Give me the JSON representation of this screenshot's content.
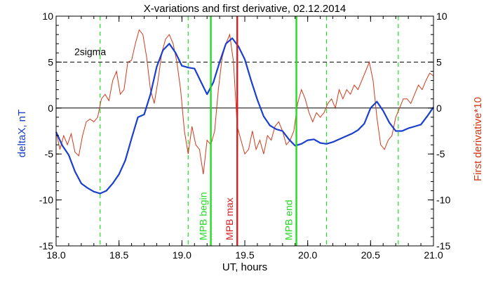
{
  "chart_data": {
    "type": "line",
    "title": "X-variations and first derivative, 02.12.2014",
    "xlabel": "UT, hours",
    "ylabel_left": "deltaX, nT",
    "ylabel_right": "First derivative*10",
    "xlim": [
      18.0,
      21.0
    ],
    "ylim": [
      -15,
      10
    ],
    "x_ticks": [
      "18.0",
      "18.5",
      "19.0",
      "19.5",
      "20.0",
      "20.5",
      "21.0"
    ],
    "y_ticks": [
      "-15",
      "-10",
      "-5",
      "0",
      "5",
      "10"
    ],
    "threshold": {
      "label": "2sigma",
      "value": 5
    },
    "zero_line": 0,
    "colors": {
      "deltaX": "#1a3fcc",
      "derivative": "#d03a1a",
      "green": "#22dd22",
      "red_marker": "#d42020",
      "threshold": "#000000"
    },
    "series": [
      {
        "name": "deltaX, nT",
        "color": "#1a3fcc",
        "x": [
          18.0,
          18.05,
          18.1,
          18.15,
          18.2,
          18.25,
          18.3,
          18.35,
          18.4,
          18.45,
          18.5,
          18.55,
          18.6,
          18.65,
          18.7,
          18.75,
          18.8,
          18.85,
          18.9,
          18.95,
          19.0,
          19.05,
          19.1,
          19.15,
          19.2,
          19.25,
          19.3,
          19.35,
          19.4,
          19.45,
          19.5,
          19.55,
          19.6,
          19.65,
          19.7,
          19.75,
          19.8,
          19.85,
          19.9,
          19.95,
          20.0,
          20.05,
          20.1,
          20.15,
          20.2,
          20.25,
          20.3,
          20.35,
          20.4,
          20.45,
          20.5,
          20.55,
          20.6,
          20.65,
          20.7,
          20.75,
          20.8,
          20.85,
          20.9,
          20.95,
          21.0
        ],
        "values": [
          -2.6,
          -4.1,
          -5.1,
          -6.9,
          -8.2,
          -8.7,
          -9.1,
          -9.3,
          -9.0,
          -8.2,
          -7.2,
          -5.7,
          -3.3,
          -1.0,
          -0.7,
          1.5,
          4.5,
          6.3,
          7.0,
          6.0,
          4.6,
          4.4,
          4.3,
          2.9,
          1.5,
          2.8,
          5.0,
          7.0,
          7.6,
          6.7,
          5.3,
          3.0,
          0.9,
          -0.9,
          -1.9,
          -2.3,
          -2.5,
          -3.4,
          -4.1,
          -3.9,
          -3.5,
          -3.4,
          -3.8,
          -3.9,
          -3.7,
          -3.4,
          -3.1,
          -2.8,
          -2.4,
          -1.7,
          0.0,
          0.7,
          -0.3,
          -1.6,
          -2.5,
          -2.5,
          -2.2,
          -2.0,
          -1.8,
          -0.9,
          0.1
        ]
      },
      {
        "name": "First derivative*10",
        "color": "#d03a1a",
        "x": [
          18.0,
          18.03,
          18.06,
          18.09,
          18.12,
          18.15,
          18.18,
          18.21,
          18.24,
          18.27,
          18.3,
          18.33,
          18.36,
          18.39,
          18.42,
          18.45,
          18.48,
          18.51,
          18.54,
          18.57,
          18.6,
          18.63,
          18.66,
          18.69,
          18.72,
          18.75,
          18.78,
          18.81,
          18.84,
          18.87,
          18.9,
          18.93,
          18.96,
          18.99,
          19.02,
          19.05,
          19.08,
          19.11,
          19.14,
          19.17,
          19.2,
          19.23,
          19.26,
          19.29,
          19.32,
          19.35,
          19.38,
          19.41,
          19.44,
          19.47,
          19.5,
          19.53,
          19.56,
          19.59,
          19.62,
          19.65,
          19.68,
          19.71,
          19.74,
          19.77,
          19.8,
          19.83,
          19.86,
          19.89,
          19.92,
          19.95,
          19.98,
          20.01,
          20.04,
          20.07,
          20.1,
          20.13,
          20.16,
          20.19,
          20.22,
          20.25,
          20.28,
          20.31,
          20.34,
          20.37,
          20.4,
          20.43,
          20.46,
          20.49,
          20.52,
          20.55,
          20.58,
          20.61,
          20.64,
          20.67,
          20.7,
          20.73,
          20.76,
          20.79,
          20.82,
          20.85,
          20.88,
          20.91,
          20.94,
          20.97,
          21.0
        ],
        "values": [
          -2.5,
          -4.5,
          -3.0,
          -4.0,
          -2.8,
          -4.8,
          -5.2,
          -3.0,
          -1.5,
          -1.2,
          -1.5,
          -1.0,
          1.0,
          1.5,
          0.8,
          3.0,
          4.0,
          1.5,
          2.0,
          5.0,
          5.2,
          7.0,
          8.5,
          8.0,
          5.5,
          2.0,
          0.5,
          3.0,
          6.0,
          7.5,
          8.0,
          7.0,
          5.0,
          2.0,
          -2.5,
          -5.0,
          -2.0,
          -4.0,
          -4.5,
          -7.2,
          -3.5,
          -4.0,
          -2.5,
          2.0,
          5.5,
          7.0,
          8.0,
          5.0,
          -2.0,
          -3.5,
          -5.0,
          -4.5,
          -2.5,
          -4.5,
          -3.5,
          -5.0,
          -3.0,
          -3.5,
          -2.0,
          -1.5,
          -2.5,
          -4.0,
          -3.5,
          -2.5,
          0.5,
          2.0,
          1.0,
          -0.5,
          -1.5,
          -0.5,
          -1.0,
          -0.5,
          0.5,
          1.0,
          0.0,
          2.0,
          1.0,
          2.0,
          1.5,
          2.5,
          2.0,
          3.0,
          4.0,
          5.0,
          3.0,
          -1.0,
          -4.0,
          -4.5,
          -3.5,
          -3.0,
          -1.0,
          0.0,
          1.0,
          1.0,
          0.5,
          1.5,
          2.5,
          2.0,
          3.0,
          3.8,
          3.5
        ]
      }
    ],
    "dashed_green_lines": [
      18.35,
      19.05,
      20.15,
      20.72
    ],
    "markers": [
      {
        "label": "MPB begin",
        "x": 19.23,
        "color": "#22dd22"
      },
      {
        "label": "MPB max",
        "x": 19.44,
        "color": "#d42020"
      },
      {
        "label": "MPB end",
        "x": 19.91,
        "color": "#22dd22"
      }
    ]
  }
}
